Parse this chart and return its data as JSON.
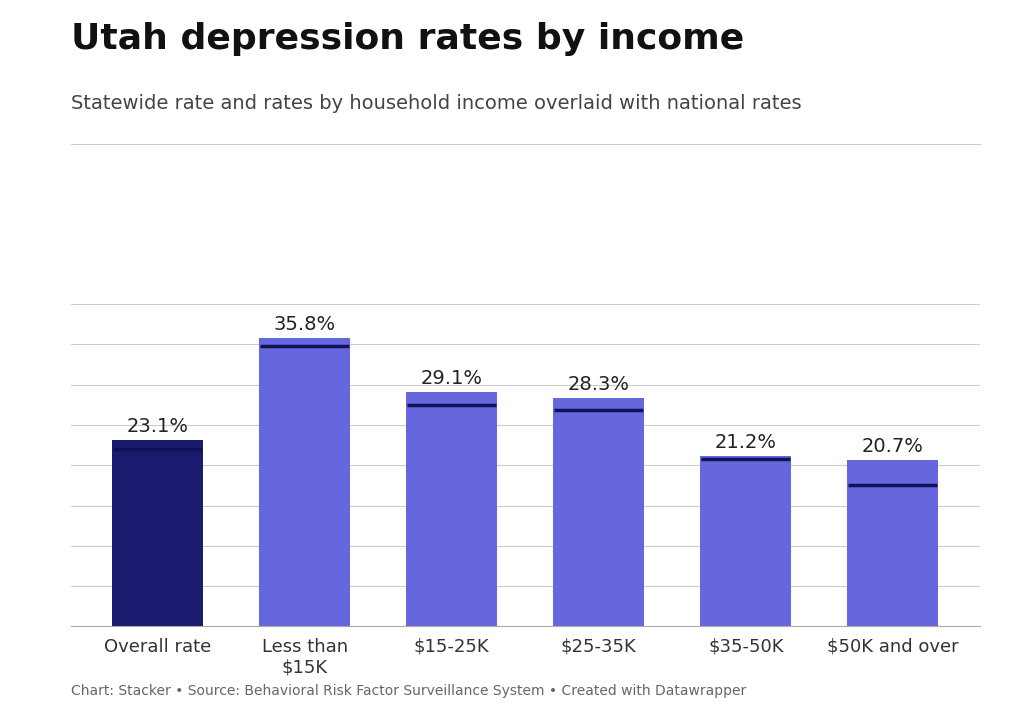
{
  "title": "Utah depression rates by income",
  "subtitle": "Statewide rate and rates by household income overlaid with national rates",
  "footer": "Chart: Stacker • Source: Behavioral Risk Factor Surveillance System • Created with Datawrapper",
  "categories": [
    "Overall rate",
    "Less than\n$15K",
    "$15-25K",
    "$25-35K",
    "$35-50K",
    "$50K and over"
  ],
  "values": [
    23.1,
    35.8,
    29.1,
    28.3,
    21.2,
    20.7
  ],
  "national_rates": [
    22.0,
    34.8,
    27.5,
    26.8,
    20.8,
    17.5
  ],
  "bar_colors": [
    "#1a1a6e",
    "#6666dd",
    "#6666dd",
    "#6666dd",
    "#6666dd",
    "#6666dd"
  ],
  "national_line_color": "#111155",
  "background_color": "#ffffff",
  "title_fontsize": 26,
  "subtitle_fontsize": 14,
  "label_fontsize": 14,
  "tick_fontsize": 13,
  "footer_fontsize": 10,
  "ylim": [
    0,
    42
  ],
  "bar_width": 0.62
}
